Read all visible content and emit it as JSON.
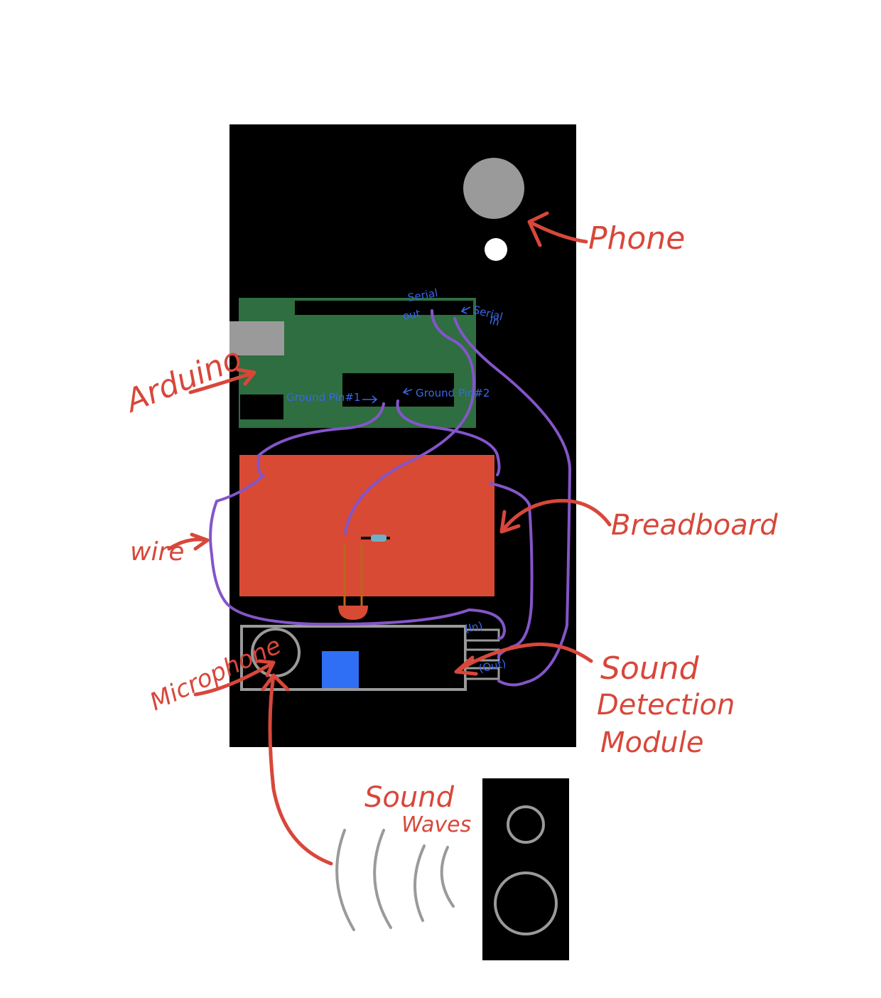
{
  "labels": {
    "phone": "Phone",
    "arduino": "Arduino",
    "breadboard": "Breadboard",
    "wire": "wire",
    "microphone": "Microphone",
    "sound_detection_line1": "Sound",
    "sound_detection_line2": "Detection",
    "sound_detection_line3": "Module",
    "sound_waves_line1": "Sound",
    "sound_waves_line2": "Waves"
  },
  "pin_labels": {
    "serial_out_line1": "Serial",
    "serial_out_line2": "out",
    "serial_in_line1": "Serial",
    "serial_in_line2": "In",
    "ground_pin_1": "Ground Pin#1",
    "ground_pin_2": "Ground Pin#2",
    "module_in": "(In)",
    "module_out": "(Out)"
  },
  "colors": {
    "annotation": "#d8473a",
    "pin_text": "#3a67e8",
    "wire": "#8455c9",
    "arduino_board": "#2e6e40",
    "breadboard": "#d84a33",
    "phone_body": "#000000",
    "module_outline": "#9a9a9a",
    "module_chip": "#2f6ff5"
  }
}
